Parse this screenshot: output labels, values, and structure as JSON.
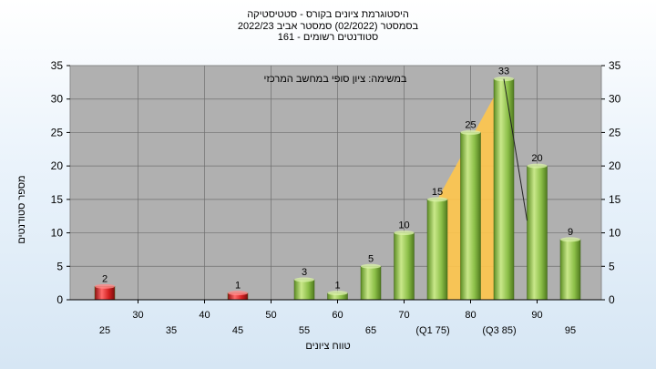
{
  "titles": {
    "line1": "היסטוגרמת ציונים בקורס - סטטיסטיקה",
    "line2": "בסמסטר  (02/2022)  סמסטר אביב 2022/23",
    "line3": "סטודנטים רשומים - 161"
  },
  "chart_data": {
    "type": "bar",
    "title": "היסטוגרמת ציונים בקורס - סטטיסטיקה",
    "annotation": "במשימה: ציון סופי במחשב המרכזי",
    "xlabel": "טווח ציונים",
    "ylabel": "מספר סטודנטים",
    "ylim": [
      0,
      35
    ],
    "yticks": [
      0,
      5,
      10,
      15,
      20,
      25,
      30,
      35
    ],
    "grid": true,
    "xticks_upper": [
      "30",
      "40",
      "50",
      "60",
      "70",
      "80",
      "90"
    ],
    "xticks_lower": [
      "25",
      "35",
      "45",
      "55",
      "65",
      "(Q1 75)",
      "(Q3 85)",
      "95"
    ],
    "categories": [
      "25",
      "30",
      "35",
      "40",
      "45",
      "50",
      "55",
      "60",
      "65",
      "70",
      "75",
      "80",
      "85",
      "90",
      "95"
    ],
    "values": [
      2,
      0,
      0,
      0,
      1,
      0,
      3,
      1,
      5,
      10,
      15,
      25,
      33,
      20,
      9
    ],
    "fail_threshold": 50,
    "colors": {
      "fail": "#d42020",
      "pass": "#8dc04a",
      "iqr": "#ffc74d",
      "plot_bg": "#b0b0b0"
    },
    "interquartile_range": [
      75,
      85
    ]
  }
}
